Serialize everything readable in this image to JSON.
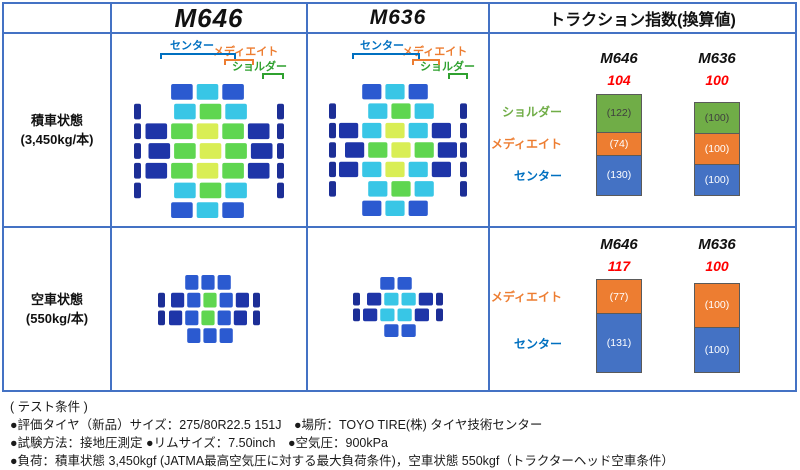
{
  "colors": {
    "table_border": "#4472C4",
    "center_blue": "#0070C0",
    "mediate_orange": "#ED7D31",
    "shoulder_green": "#70AD47",
    "index_red": "#FF0000"
  },
  "table": {
    "header": {
      "col_m646": "M646",
      "col_m636": "M636",
      "col_traction": "トラクション指数(換算値)"
    },
    "rows": [
      {
        "label_line1": "積車状態",
        "label_line2": "(3,450kg/本)"
      },
      {
        "label_line1": "空車状態",
        "label_line2": "(550kg/本)"
      }
    ]
  },
  "tread_labels": {
    "center": "センター",
    "mediate": "メディエイト",
    "shoulder": "ショルダー"
  },
  "chart_data": [
    {
      "type": "bar",
      "stacked": true,
      "title": "トラクション指数(換算値) 積車状態",
      "categories": [
        "M646",
        "M636"
      ],
      "totals": [
        "104",
        "100"
      ],
      "series": [
        {
          "name": "ショルダー",
          "color": "#70AD47",
          "label_color": "#70AD47",
          "value_text_color": "#3f3f3f",
          "values": [
            122,
            100
          ],
          "labels": [
            "(122)",
            "(100)"
          ]
        },
        {
          "name": "メディエイト",
          "color": "#ED7D31",
          "label_color": "#ED7D31",
          "value_text_color": "#ffffff",
          "values": [
            74,
            100
          ],
          "labels": [
            "(74)",
            "(100)"
          ]
        },
        {
          "name": "センター",
          "color": "#4472C4",
          "label_color": "#0070C0",
          "value_text_color": "#ffffff",
          "values": [
            130,
            100
          ],
          "labels": [
            "(130)",
            "(100)"
          ]
        }
      ],
      "legend_position": "left",
      "grid": false
    },
    {
      "type": "bar",
      "stacked": true,
      "title": "トラクション指数(換算値) 空車状態",
      "categories": [
        "M646",
        "M636"
      ],
      "totals": [
        "117",
        "100"
      ],
      "series": [
        {
          "name": "メディエイト",
          "color": "#ED7D31",
          "label_color": "#ED7D31",
          "value_text_color": "#ffffff",
          "values": [
            77,
            100
          ],
          "labels": [
            "(77)",
            "(100)"
          ]
        },
        {
          "name": "センター",
          "color": "#4472C4",
          "label_color": "#0070C0",
          "value_text_color": "#ffffff",
          "values": [
            131,
            100
          ],
          "labels": [
            "(131)",
            "(100)"
          ]
        }
      ],
      "legend_position": "left",
      "grid": false
    }
  ],
  "footer": {
    "lines": [
      "( テスト条件 )",
      "●評価タイヤ（新品）サイズ：275/80R22.5 151J　●場所：TOYO TIRE(株) タイヤ技術センター",
      "●試験方法：接地圧測定 ●リムサイズ：7.50inch　●空気圧：900kPa",
      "●負荷：積車状態 3,450kgf (JATMA最高空気圧に対する最大負荷条件)，空車状態 550kgf（トラクターヘッド空車条件）"
    ]
  }
}
